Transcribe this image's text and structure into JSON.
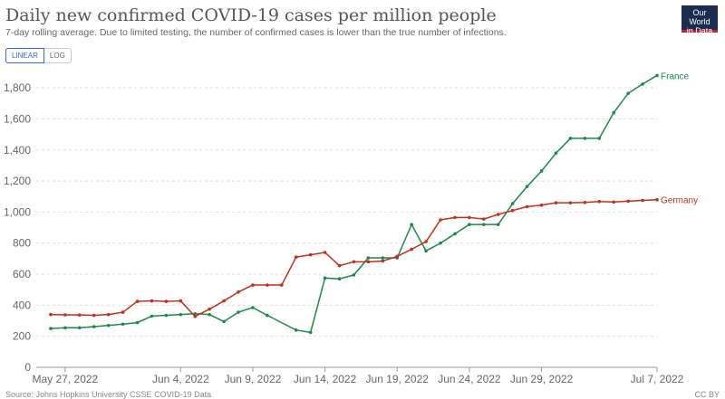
{
  "header": {
    "title": "Daily new confirmed COVID-19 cases per million people",
    "subtitle": "7-day rolling average. Due to limited testing, the number of confirmed cases is lower than the true number of infections.",
    "logo_line1": "Our World",
    "logo_line2": "in Data",
    "logo_bg": "#1a2d4f",
    "logo_accent": "#c3242f"
  },
  "controls": {
    "linear_label": "LINEAR",
    "log_label": "LOG",
    "selected": "LINEAR"
  },
  "footer": {
    "source": "Source: Johns Hopkins University CSSE COVID-19 Data",
    "license": "CC BY"
  },
  "chart_data": {
    "type": "line",
    "x_unit": "date",
    "ylim": [
      0,
      1900
    ],
    "yticks": [
      0,
      200,
      400,
      600,
      800,
      1000,
      1200,
      1400,
      1600,
      1800
    ],
    "ytick_labels": [
      "0",
      "200",
      "400",
      "600",
      "800",
      "1,000",
      "1,200",
      "1,400",
      "1,600",
      "1,800"
    ],
    "xticks": [
      "2022-05-27",
      "2022-06-04",
      "2022-06-09",
      "2022-06-14",
      "2022-06-19",
      "2022-06-24",
      "2022-06-29",
      "2022-07-07"
    ],
    "xtick_labels": [
      "May 27, 2022",
      "Jun 4, 2022",
      "Jun 9, 2022",
      "Jun 14, 2022",
      "Jun 19, 2022",
      "Jun 24, 2022",
      "Jun 29, 2022",
      "Jul 7, 2022"
    ],
    "grid": true,
    "legend": "inline-right",
    "series": [
      {
        "name": "France",
        "color": "#1a8a4a",
        "points": [
          [
            "2022-05-26",
            250
          ],
          [
            "2022-05-27",
            255
          ],
          [
            "2022-05-28",
            255
          ],
          [
            "2022-05-29",
            262
          ],
          [
            "2022-05-30",
            270
          ],
          [
            "2022-05-31",
            278
          ],
          [
            "2022-06-01",
            288
          ],
          [
            "2022-06-02",
            330
          ],
          [
            "2022-06-03",
            335
          ],
          [
            "2022-06-04",
            340
          ],
          [
            "2022-06-05",
            345
          ],
          [
            "2022-06-06",
            340
          ],
          [
            "2022-06-07",
            295
          ],
          [
            "2022-06-08",
            355
          ],
          [
            "2022-06-09",
            385
          ],
          [
            "2022-06-10",
            335
          ],
          [
            "2022-06-12",
            240
          ],
          [
            "2022-06-13",
            225
          ],
          [
            "2022-06-14",
            575
          ],
          [
            "2022-06-15",
            570
          ],
          [
            "2022-06-16",
            595
          ],
          [
            "2022-06-17",
            705
          ],
          [
            "2022-06-18",
            705
          ],
          [
            "2022-06-19",
            705
          ],
          [
            "2022-06-20",
            920
          ],
          [
            "2022-06-21",
            750
          ],
          [
            "2022-06-22",
            800
          ],
          [
            "2022-06-23",
            860
          ],
          [
            "2022-06-24",
            920
          ],
          [
            "2022-06-25",
            920
          ],
          [
            "2022-06-26",
            920
          ],
          [
            "2022-06-27",
            1055
          ],
          [
            "2022-06-28",
            1165
          ],
          [
            "2022-06-29",
            1265
          ],
          [
            "2022-06-30",
            1380
          ],
          [
            "2022-07-01",
            1475
          ],
          [
            "2022-07-02",
            1475
          ],
          [
            "2022-07-03",
            1475
          ],
          [
            "2022-07-04",
            1640
          ],
          [
            "2022-07-05",
            1765
          ],
          [
            "2022-07-06",
            1825
          ],
          [
            "2022-07-07",
            1880
          ]
        ]
      },
      {
        "name": "Germany",
        "color": "#c0301a",
        "points": [
          [
            "2022-05-26",
            340
          ],
          [
            "2022-05-27",
            338
          ],
          [
            "2022-05-28",
            337
          ],
          [
            "2022-05-29",
            335
          ],
          [
            "2022-05-30",
            340
          ],
          [
            "2022-05-31",
            355
          ],
          [
            "2022-06-01",
            425
          ],
          [
            "2022-06-02",
            428
          ],
          [
            "2022-06-03",
            425
          ],
          [
            "2022-06-04",
            428
          ],
          [
            "2022-06-05",
            328
          ],
          [
            "2022-06-06",
            375
          ],
          [
            "2022-06-07",
            428
          ],
          [
            "2022-06-08",
            485
          ],
          [
            "2022-06-09",
            530
          ],
          [
            "2022-06-10",
            530
          ],
          [
            "2022-06-11",
            530
          ],
          [
            "2022-06-12",
            710
          ],
          [
            "2022-06-13",
            725
          ],
          [
            "2022-06-14",
            740
          ],
          [
            "2022-06-15",
            655
          ],
          [
            "2022-06-16",
            680
          ],
          [
            "2022-06-17",
            680
          ],
          [
            "2022-06-18",
            685
          ],
          [
            "2022-06-19",
            715
          ],
          [
            "2022-06-20",
            760
          ],
          [
            "2022-06-21",
            810
          ],
          [
            "2022-06-22",
            950
          ],
          [
            "2022-06-23",
            965
          ],
          [
            "2022-06-24",
            965
          ],
          [
            "2022-06-25",
            955
          ],
          [
            "2022-06-26",
            985
          ],
          [
            "2022-06-27",
            1010
          ],
          [
            "2022-06-28",
            1035
          ],
          [
            "2022-06-29",
            1045
          ],
          [
            "2022-06-30",
            1060
          ],
          [
            "2022-07-01",
            1060
          ],
          [
            "2022-07-02",
            1062
          ],
          [
            "2022-07-03",
            1068
          ],
          [
            "2022-07-04",
            1065
          ],
          [
            "2022-07-05",
            1070
          ],
          [
            "2022-07-06",
            1075
          ],
          [
            "2022-07-07",
            1080
          ]
        ]
      }
    ]
  }
}
